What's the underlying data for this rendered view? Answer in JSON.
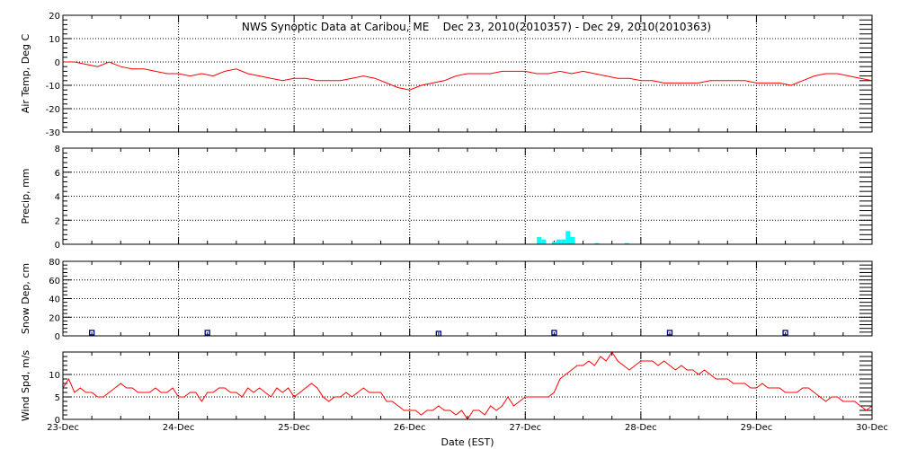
{
  "title": "NWS Synoptic Data at Caribou, ME    Dec 23, 2010(2010357) - Dec 29, 2010(2010363)",
  "xlabel": "Date (EST)",
  "x_ticks": [
    "23-Dec",
    "24-Dec",
    "25-Dec",
    "26-Dec",
    "27-Dec",
    "28-Dec",
    "29-Dec",
    "30-Dec"
  ],
  "colors": {
    "temp": "#ff0000",
    "precip": "#00ffff",
    "snow": "#000080",
    "wind": "#ff0000",
    "frame": "#000000"
  },
  "chart_data": [
    {
      "type": "line",
      "ylabel": "Air Temp, Deg C",
      "ylim": [
        -30,
        20
      ],
      "yticks": [
        -30,
        -20,
        -10,
        0,
        10,
        20
      ],
      "xlim": [
        0,
        7
      ],
      "grid": true,
      "series": [
        {
          "x": [
            0,
            0.1,
            0.2,
            0.3,
            0.4,
            0.5,
            0.6,
            0.7,
            0.8,
            0.9,
            1.0,
            1.1,
            1.2,
            1.3,
            1.4,
            1.5,
            1.6,
            1.7,
            1.8,
            1.9,
            2.0,
            2.1,
            2.2,
            2.3,
            2.4,
            2.5,
            2.6,
            2.7,
            2.8,
            2.9,
            3.0,
            3.1,
            3.2,
            3.3,
            3.4,
            3.5,
            3.6,
            3.7,
            3.8,
            3.9,
            4.0,
            4.1,
            4.2,
            4.3,
            4.4,
            4.5,
            4.6,
            4.7,
            4.8,
            4.9,
            5.0,
            5.1,
            5.2,
            5.3,
            5.4,
            5.5,
            5.6,
            5.7,
            5.8,
            5.9,
            6.0,
            6.1,
            6.2,
            6.3,
            6.4,
            6.5,
            6.6,
            6.7,
            6.8,
            6.9,
            7.0
          ],
          "y": [
            0,
            0,
            -1,
            -2,
            0,
            -2,
            -3,
            -3,
            -4,
            -5,
            -5,
            -6,
            -5,
            -6,
            -4,
            -3,
            -5,
            -6,
            -7,
            -8,
            -7,
            -7,
            -8,
            -8,
            -8,
            -7,
            -6,
            -7,
            -9,
            -11,
            -12,
            -10,
            -9,
            -8,
            -6,
            -5,
            -5,
            -5,
            -4,
            -4,
            -4,
            -5,
            -5,
            -4,
            -5,
            -4,
            -5,
            -6,
            -7,
            -7,
            -8,
            -8,
            -9,
            -9,
            -9,
            -9,
            -8,
            -8,
            -8,
            -8,
            -9,
            -9,
            -9,
            -10,
            -8,
            -6,
            -5,
            -5,
            -6,
            -7,
            -8
          ]
        }
      ]
    },
    {
      "type": "bar",
      "ylabel": "Precip, mm",
      "ylim": [
        0,
        8
      ],
      "yticks": [
        0,
        2,
        4,
        6,
        8
      ],
      "xlim": [
        0,
        7
      ],
      "grid": true,
      "bar_width": 0.04,
      "series": [
        {
          "x": [
            4.12,
            4.16,
            4.25,
            4.29,
            4.33,
            4.37,
            4.41,
            4.62,
            4.88
          ],
          "values": [
            0.6,
            0.4,
            0.2,
            0.4,
            0.4,
            1.1,
            0.6,
            0.1,
            0.1
          ]
        }
      ]
    },
    {
      "type": "scatter",
      "ylabel": "Snow Dep, cm",
      "ylim": [
        0,
        80
      ],
      "yticks": [
        0,
        20,
        40,
        60,
        80
      ],
      "xlim": [
        0,
        7
      ],
      "grid": true,
      "series": [
        {
          "x": [
            0.25,
            1.25,
            3.25,
            4.25,
            5.25,
            6.25
          ],
          "y": [
            1,
            1,
            0,
            1,
            1,
            1
          ]
        }
      ]
    },
    {
      "type": "line",
      "ylabel": "Wind Spd, m/s",
      "ylim": [
        0,
        15
      ],
      "yticks": [
        0,
        5,
        10
      ],
      "xlim": [
        0,
        7
      ],
      "grid": true,
      "series": [
        {
          "x": [
            0,
            0.05,
            0.1,
            0.15,
            0.2,
            0.25,
            0.3,
            0.35,
            0.4,
            0.45,
            0.5,
            0.55,
            0.6,
            0.65,
            0.7,
            0.75,
            0.8,
            0.85,
            0.9,
            0.95,
            1.0,
            1.05,
            1.1,
            1.15,
            1.2,
            1.25,
            1.3,
            1.35,
            1.4,
            1.45,
            1.5,
            1.55,
            1.6,
            1.65,
            1.7,
            1.75,
            1.8,
            1.85,
            1.9,
            1.95,
            2.0,
            2.05,
            2.1,
            2.15,
            2.2,
            2.25,
            2.3,
            2.35,
            2.4,
            2.45,
            2.5,
            2.55,
            2.6,
            2.65,
            2.7,
            2.75,
            2.8,
            2.85,
            2.9,
            2.95,
            3.0,
            3.05,
            3.1,
            3.15,
            3.2,
            3.25,
            3.3,
            3.35,
            3.4,
            3.45,
            3.5,
            3.55,
            3.6,
            3.65,
            3.7,
            3.75,
            3.8,
            3.85,
            3.9,
            3.95,
            4.0,
            4.05,
            4.1,
            4.15,
            4.2,
            4.25,
            4.3,
            4.35,
            4.4,
            4.45,
            4.5,
            4.55,
            4.6,
            4.65,
            4.7,
            4.75,
            4.8,
            4.85,
            4.9,
            4.95,
            5.0,
            5.05,
            5.1,
            5.15,
            5.2,
            5.25,
            5.3,
            5.35,
            5.4,
            5.45,
            5.5,
            5.55,
            5.6,
            5.65,
            5.7,
            5.75,
            5.8,
            5.85,
            5.9,
            5.95,
            6.0,
            6.05,
            6.1,
            6.15,
            6.2,
            6.25,
            6.3,
            6.35,
            6.4,
            6.45,
            6.5,
            6.55,
            6.6,
            6.65,
            6.7,
            6.75,
            6.8,
            6.85,
            6.9,
            6.95,
            7.0
          ],
          "y": [
            7,
            9,
            6,
            7,
            6,
            6,
            5,
            5,
            6,
            7,
            8,
            7,
            7,
            6,
            6,
            6,
            7,
            6,
            6,
            7,
            5,
            5,
            6,
            6,
            4,
            6,
            6,
            7,
            7,
            6,
            6,
            5,
            7,
            6,
            7,
            6,
            5,
            7,
            6,
            7,
            5,
            6,
            7,
            8,
            7,
            5,
            4,
            5,
            5,
            6,
            5,
            6,
            7,
            6,
            6,
            6,
            4,
            4,
            3,
            2,
            2,
            2,
            1,
            2,
            2,
            3,
            2,
            2,
            1,
            2,
            0,
            2,
            2,
            1,
            3,
            2,
            3,
            5,
            3,
            4,
            5,
            5,
            5,
            5,
            5,
            6,
            9,
            10,
            11,
            12,
            12,
            13,
            12,
            14,
            13,
            15,
            13,
            12,
            11,
            12,
            13,
            13,
            13,
            12,
            13,
            12,
            11,
            12,
            11,
            11,
            10,
            11,
            10,
            9,
            9,
            9,
            8,
            8,
            8,
            7,
            7,
            8,
            7,
            7,
            7,
            6,
            6,
            6,
            7,
            7,
            6,
            5,
            4,
            5,
            5,
            4,
            4,
            4,
            3,
            2,
            3
          ]
        }
      ]
    }
  ]
}
